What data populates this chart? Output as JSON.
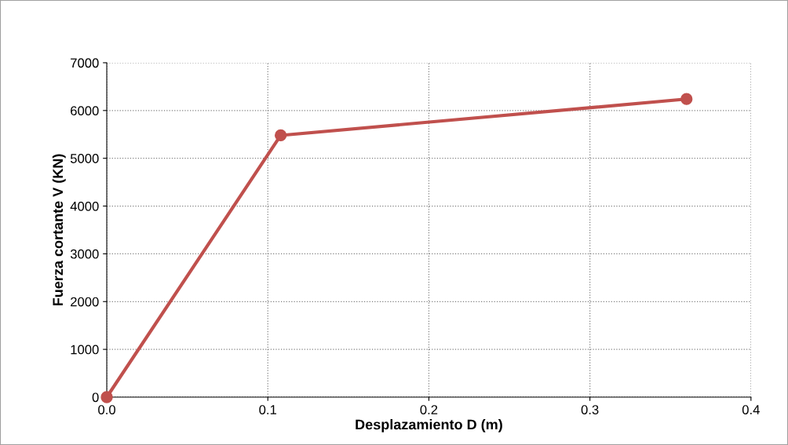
{
  "chart_data": {
    "type": "line",
    "xlabel": "Desplazamiento D (m)",
    "ylabel": "Fuerza cortante V (KN)",
    "x": [
      0,
      0.108,
      0.36
    ],
    "series": [
      {
        "color": "#c0504d",
        "values": [
          0,
          5480,
          6240
        ]
      }
    ],
    "xlim": [
      0,
      0.4
    ],
    "xticks": [
      {
        "value": 0,
        "label": "0.0"
      },
      0.1,
      0.2,
      0.3,
      0.4
    ],
    "ylim": [
      0,
      7000
    ],
    "yticks": [
      0,
      1000,
      2000,
      3000,
      4000,
      5000,
      6000,
      7000
    ],
    "grid": true,
    "marker": "circle",
    "line_style": "solid",
    "legend": false
  }
}
